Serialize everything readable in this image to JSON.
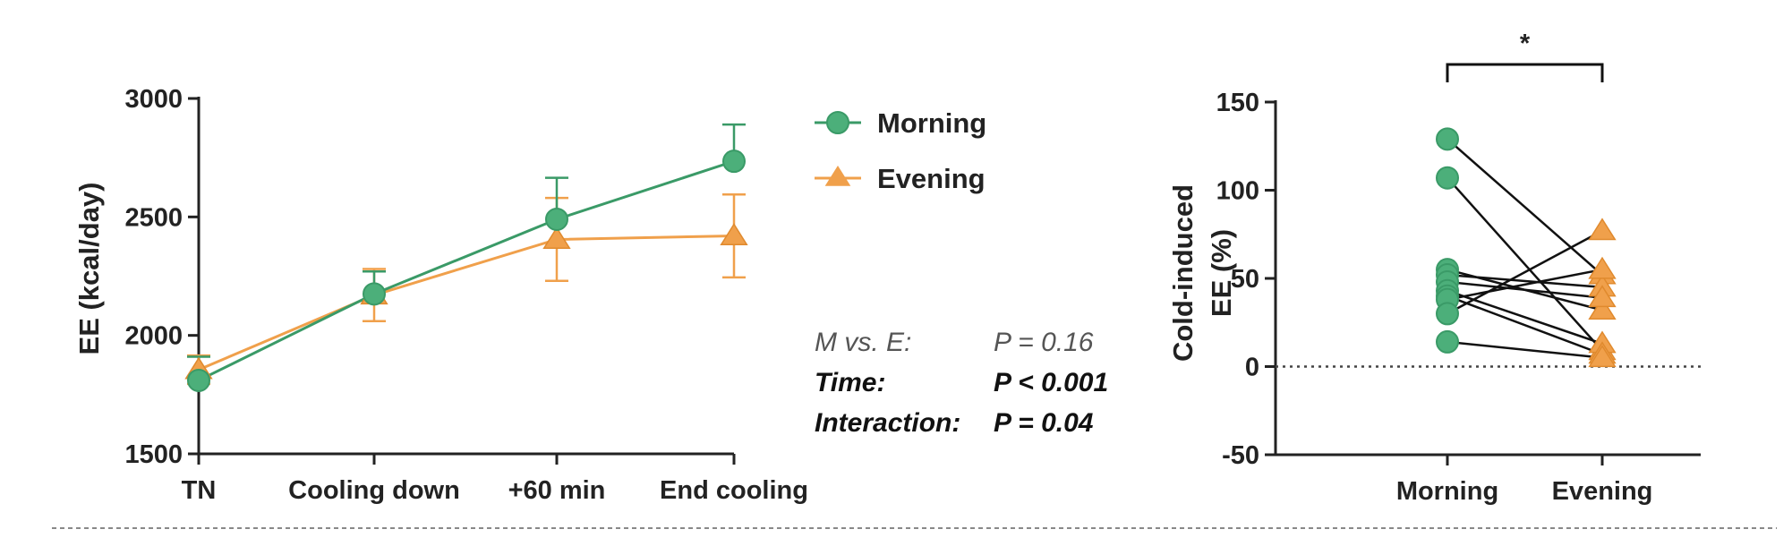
{
  "chart_data": [
    {
      "type": "line",
      "categories": [
        "TN",
        "Cooling down",
        "+60 min",
        "End cooling"
      ],
      "ylabel": "EE (kcal/day)",
      "ylim": [
        1500,
        3000
      ],
      "yticks": [
        "1500",
        "2000",
        "2500",
        "3000"
      ],
      "legend_position": "right",
      "series": [
        {
          "name": "Morning",
          "marker": "circle",
          "color": "#3a9a67",
          "values": [
            1810,
            2175,
            2490,
            2735
          ],
          "error": [
            100,
            95,
            175,
            155
          ]
        },
        {
          "name": "Evening",
          "marker": "triangle",
          "color": "#f0a04b",
          "values": [
            1855,
            2170,
            2405,
            2420
          ],
          "error": [
            60,
            110,
            175,
            175
          ]
        }
      ],
      "stats": [
        {
          "label": "M vs. E:",
          "value": "P = 0.16",
          "bold": false
        },
        {
          "label": "Time:",
          "value": "P < 0.001",
          "bold": true
        },
        {
          "label": "Interaction:",
          "value": "P = 0.04",
          "bold": true
        }
      ]
    },
    {
      "type": "scatter",
      "categories": [
        "Morning",
        "Evening"
      ],
      "ylabel": [
        "Cold-induced",
        "EE (%)"
      ],
      "ylim": [
        -50,
        150
      ],
      "yticks": [
        "-50",
        "0",
        "50",
        "100",
        "150"
      ],
      "reference_line": 0,
      "significance": "*",
      "pairs": [
        [
          129,
          52
        ],
        [
          107,
          9
        ],
        [
          55,
          32
        ],
        [
          52,
          45
        ],
        [
          48,
          39
        ],
        [
          43,
          13
        ],
        [
          40,
          7
        ],
        [
          38,
          55
        ],
        [
          30,
          77
        ],
        [
          14,
          5
        ]
      ],
      "colors": {
        "Morning": "#3a9a67",
        "Evening": "#f0a04b"
      }
    }
  ]
}
